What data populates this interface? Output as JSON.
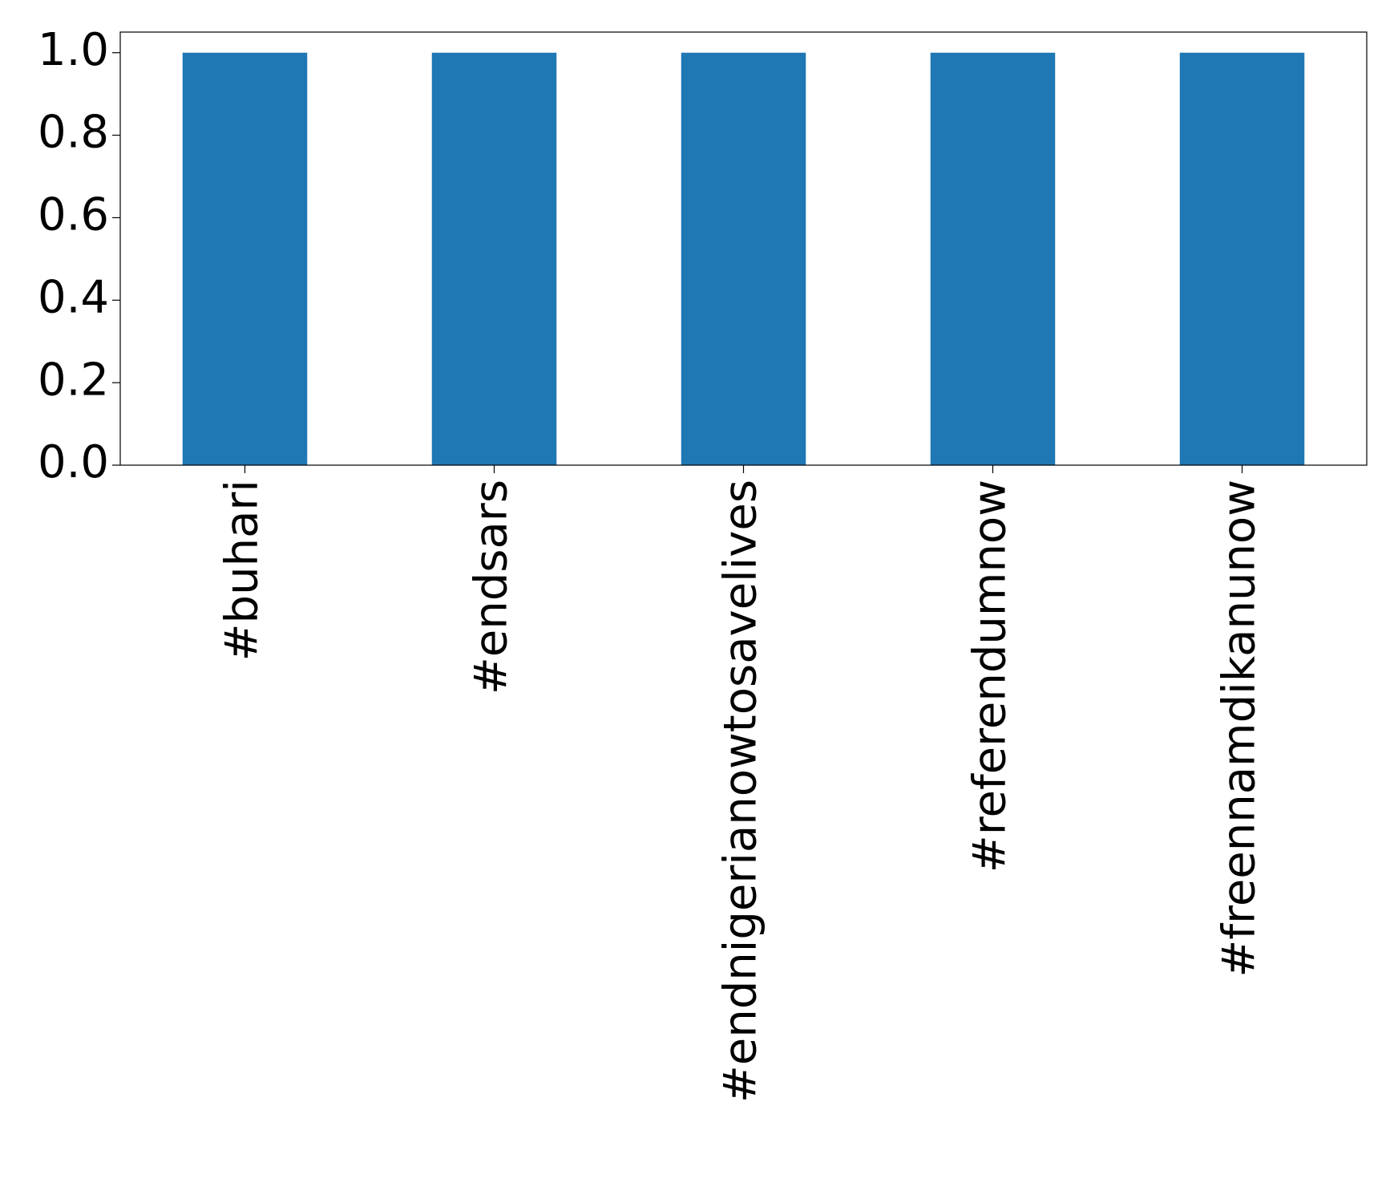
{
  "chart_data": {
    "type": "bar",
    "title": "",
    "xlabel": "",
    "ylabel": "",
    "categories": [
      "#buhari",
      "#endsars",
      "#endnigerianowtosavelives",
      "#referendumnow",
      "#freennamdikanunow"
    ],
    "values": [
      1,
      1,
      1,
      1,
      1
    ],
    "ylim": [
      0,
      1.05
    ],
    "yticks": [
      0.0,
      0.2,
      0.4,
      0.6,
      0.8,
      1.0
    ],
    "ytick_labels": [
      "0.0",
      "0.2",
      "0.4",
      "0.6",
      "0.8",
      "1.0"
    ],
    "bar_color": "#1f77b4",
    "grid": false,
    "legend": "none"
  }
}
